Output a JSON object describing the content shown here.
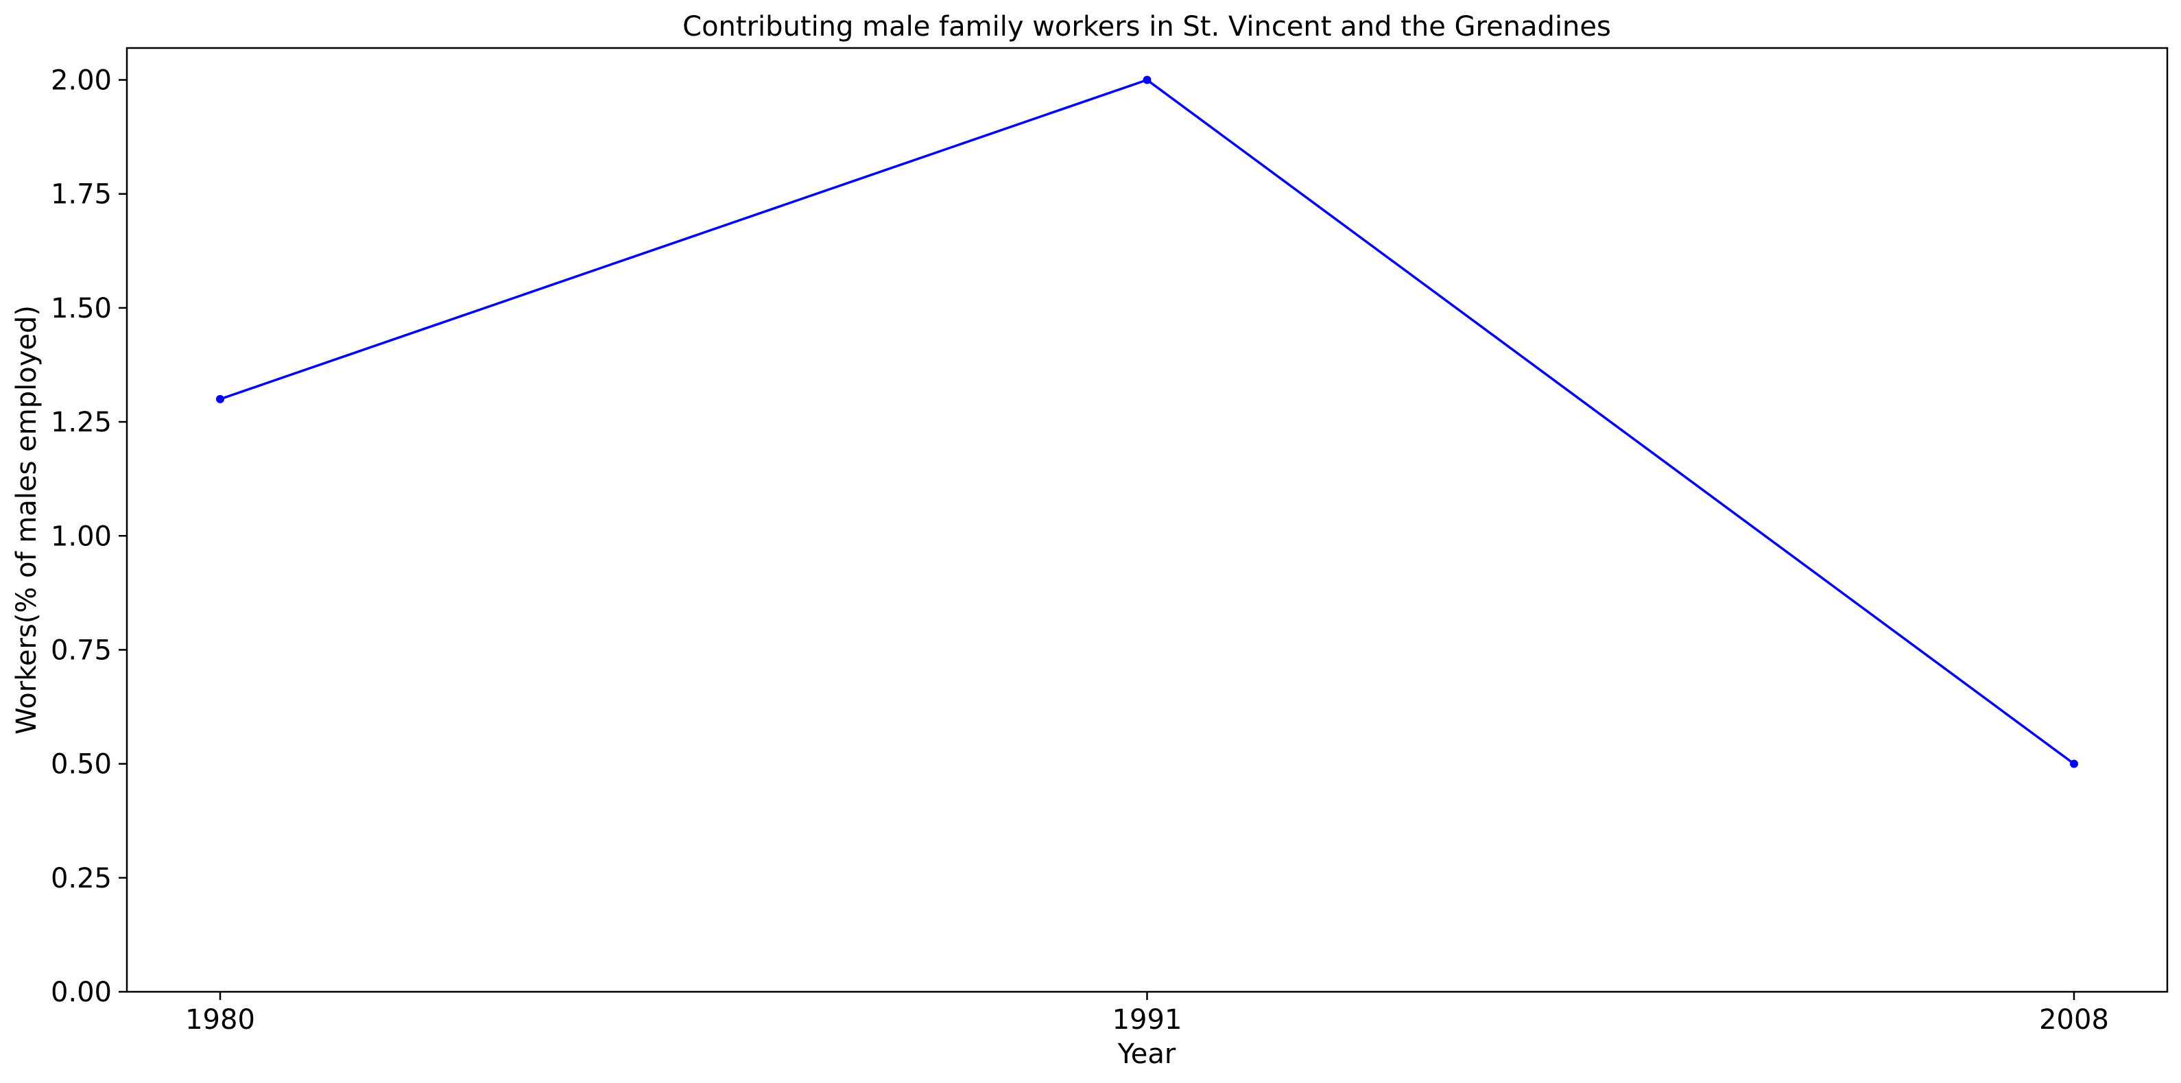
{
  "chart_data": {
    "type": "line",
    "title": "Contributing male family workers in St. Vincent and the Grenadines",
    "xlabel": "Year",
    "ylabel": "Workers(% of males employed)",
    "categories": [
      "1980",
      "1991",
      "2008"
    ],
    "series": [
      {
        "values": [
          1.3,
          2.0,
          0.5
        ],
        "color": "#0000ff",
        "marker": "circle"
      }
    ],
    "ylim": [
      0,
      2.07
    ],
    "yticks": [
      0.0,
      0.25,
      0.5,
      0.75,
      1.0,
      1.25,
      1.5,
      1.75,
      2.0
    ],
    "ytick_labels": [
      "0.00",
      "0.25",
      "0.50",
      "0.75",
      "1.00",
      "1.25",
      "1.50",
      "1.75",
      "2.00"
    ],
    "grid": false,
    "legend": "none"
  }
}
